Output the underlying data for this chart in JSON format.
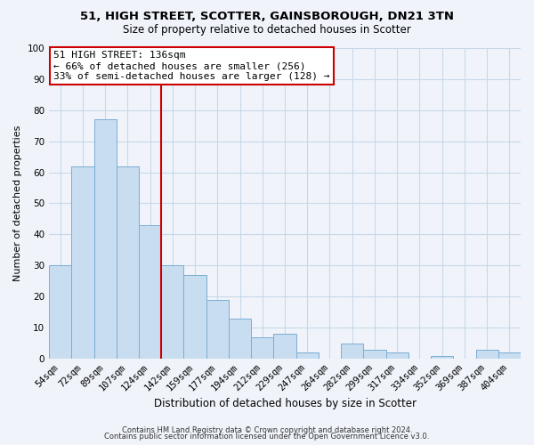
{
  "title": "51, HIGH STREET, SCOTTER, GAINSBOROUGH, DN21 3TN",
  "subtitle": "Size of property relative to detached houses in Scotter",
  "xlabel": "Distribution of detached houses by size in Scotter",
  "ylabel": "Number of detached properties",
  "bar_labels": [
    "54sqm",
    "72sqm",
    "89sqm",
    "107sqm",
    "124sqm",
    "142sqm",
    "159sqm",
    "177sqm",
    "194sqm",
    "212sqm",
    "229sqm",
    "247sqm",
    "264sqm",
    "282sqm",
    "299sqm",
    "317sqm",
    "334sqm",
    "352sqm",
    "369sqm",
    "387sqm",
    "404sqm"
  ],
  "bar_values": [
    30,
    62,
    77,
    62,
    43,
    30,
    27,
    19,
    13,
    7,
    8,
    2,
    0,
    5,
    3,
    2,
    0,
    1,
    0,
    3,
    2
  ],
  "bar_color": "#c9ddf0",
  "bar_edge_color": "#7aadd4",
  "vline_color": "#cc0000",
  "annotation_title": "51 HIGH STREET: 136sqm",
  "annotation_line1": "← 66% of detached houses are smaller (256)",
  "annotation_line2": "33% of semi-detached houses are larger (128) →",
  "annotation_box_color": "#ffffff",
  "annotation_box_edge": "#cc0000",
  "ylim": [
    0,
    100
  ],
  "yticks": [
    0,
    10,
    20,
    30,
    40,
    50,
    60,
    70,
    80,
    90,
    100
  ],
  "footnote1": "Contains HM Land Registry data © Crown copyright and database right 2024.",
  "footnote2": "Contains public sector information licensed under the Open Government Licence v3.0.",
  "background_color": "#f0f4fa",
  "grid_color": "#c8d8e8",
  "title_fontsize": 9.5,
  "subtitle_fontsize": 8.5,
  "xlabel_fontsize": 8.5,
  "ylabel_fontsize": 8.0,
  "tick_fontsize": 7.5,
  "footnote_fontsize": 6.0,
  "annotation_fontsize": 8.0
}
